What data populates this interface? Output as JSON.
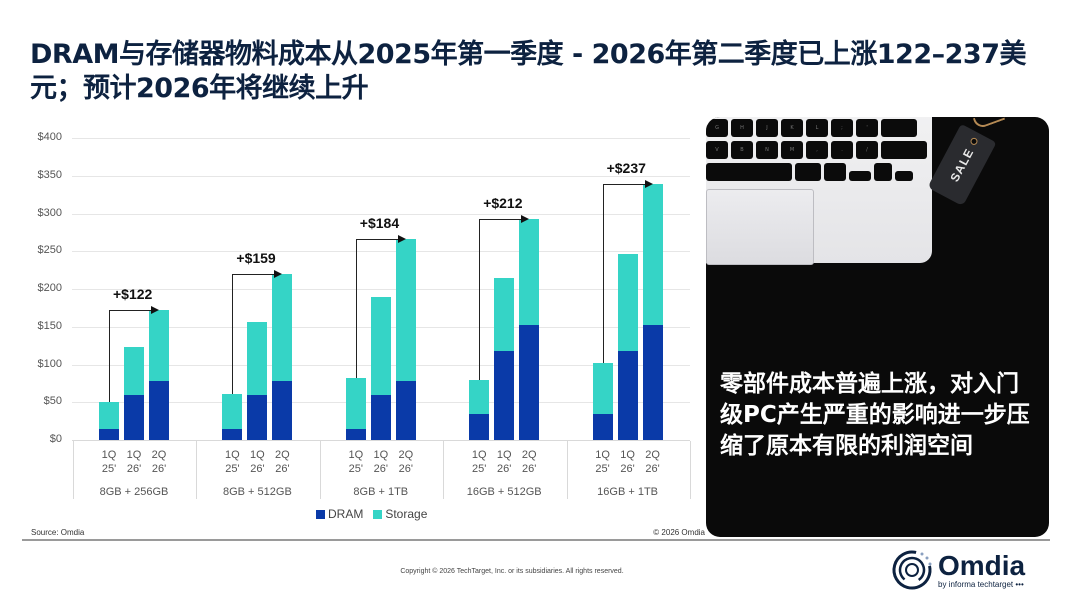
{
  "slide": {
    "title": "DRAM与存储器物料成本从2025年第一季度 - 2026年第二季度已上涨122–237美元；预计2026年将继续上升",
    "source": "Source: Omdia",
    "chart_copyright": "© 2026 Omdia",
    "footer_copyright": "Copyright © 2026 TechTarget, Inc. or its subsidiaries. All rights reserved.",
    "panel_text": "零部件成本普遍上涨，对入门级PC产生严重的影响进一步压缩了原本有限的利润空间",
    "panel_image_tag": "SALE",
    "logo": {
      "name": "Omdia",
      "sub": "by informa techtarget •••"
    }
  },
  "colors": {
    "dram": "#0a3aa8",
    "storage": "#35d4c6",
    "title": "#0d2240"
  },
  "chart_data": {
    "type": "bar",
    "stacked": true,
    "title": "",
    "xlabel": "",
    "ylabel": "",
    "ylim": [
      0,
      400
    ],
    "yticks": [
      "$0",
      "$50",
      "$100",
      "$150",
      "$200",
      "$250",
      "$300",
      "$350",
      "$400"
    ],
    "grid": true,
    "legend_position": "bottom",
    "legend": [
      "DRAM",
      "Storage"
    ],
    "groups": [
      {
        "name": "8GB + 256GB",
        "delta": "+$122",
        "periods": [
          "1Q 25'",
          "1Q 26'",
          "2Q 26'"
        ],
        "dram": [
          15,
          60,
          78
        ],
        "storage": [
          35,
          63,
          94
        ],
        "total": [
          50,
          123,
          172
        ]
      },
      {
        "name": "8GB + 512GB",
        "delta": "+$159",
        "periods": [
          "1Q 25'",
          "1Q 26'",
          "2Q 26'"
        ],
        "dram": [
          15,
          60,
          78
        ],
        "storage": [
          46,
          96,
          142
        ],
        "total": [
          61,
          156,
          220
        ]
      },
      {
        "name": "8GB + 1TB",
        "delta": "+$184",
        "periods": [
          "1Q 25'",
          "1Q 26'",
          "2Q 26'"
        ],
        "dram": [
          15,
          60,
          78
        ],
        "storage": [
          67,
          129,
          188
        ],
        "total": [
          82,
          189,
          266
        ]
      },
      {
        "name": "16GB + 512GB",
        "delta": "+$212",
        "periods": [
          "1Q 25'",
          "1Q 26'",
          "2Q 26'"
        ],
        "dram": [
          34,
          118,
          152
        ],
        "storage": [
          46,
          96,
          141
        ],
        "total": [
          80,
          214,
          293
        ]
      },
      {
        "name": "16GB + 1TB",
        "delta": "+$237",
        "periods": [
          "1Q 25'",
          "1Q 26'",
          "2Q 26'"
        ],
        "dram": [
          34,
          118,
          152
        ],
        "storage": [
          68,
          129,
          187
        ],
        "total": [
          102,
          247,
          339
        ]
      }
    ],
    "series": [
      {
        "name": "DRAM",
        "values": [
          15,
          60,
          78,
          15,
          60,
          78,
          15,
          60,
          78,
          34,
          118,
          152,
          34,
          118,
          152
        ]
      },
      {
        "name": "Storage",
        "values": [
          35,
          63,
          94,
          46,
          96,
          142,
          67,
          129,
          188,
          46,
          96,
          141,
          68,
          129,
          187
        ]
      }
    ]
  }
}
